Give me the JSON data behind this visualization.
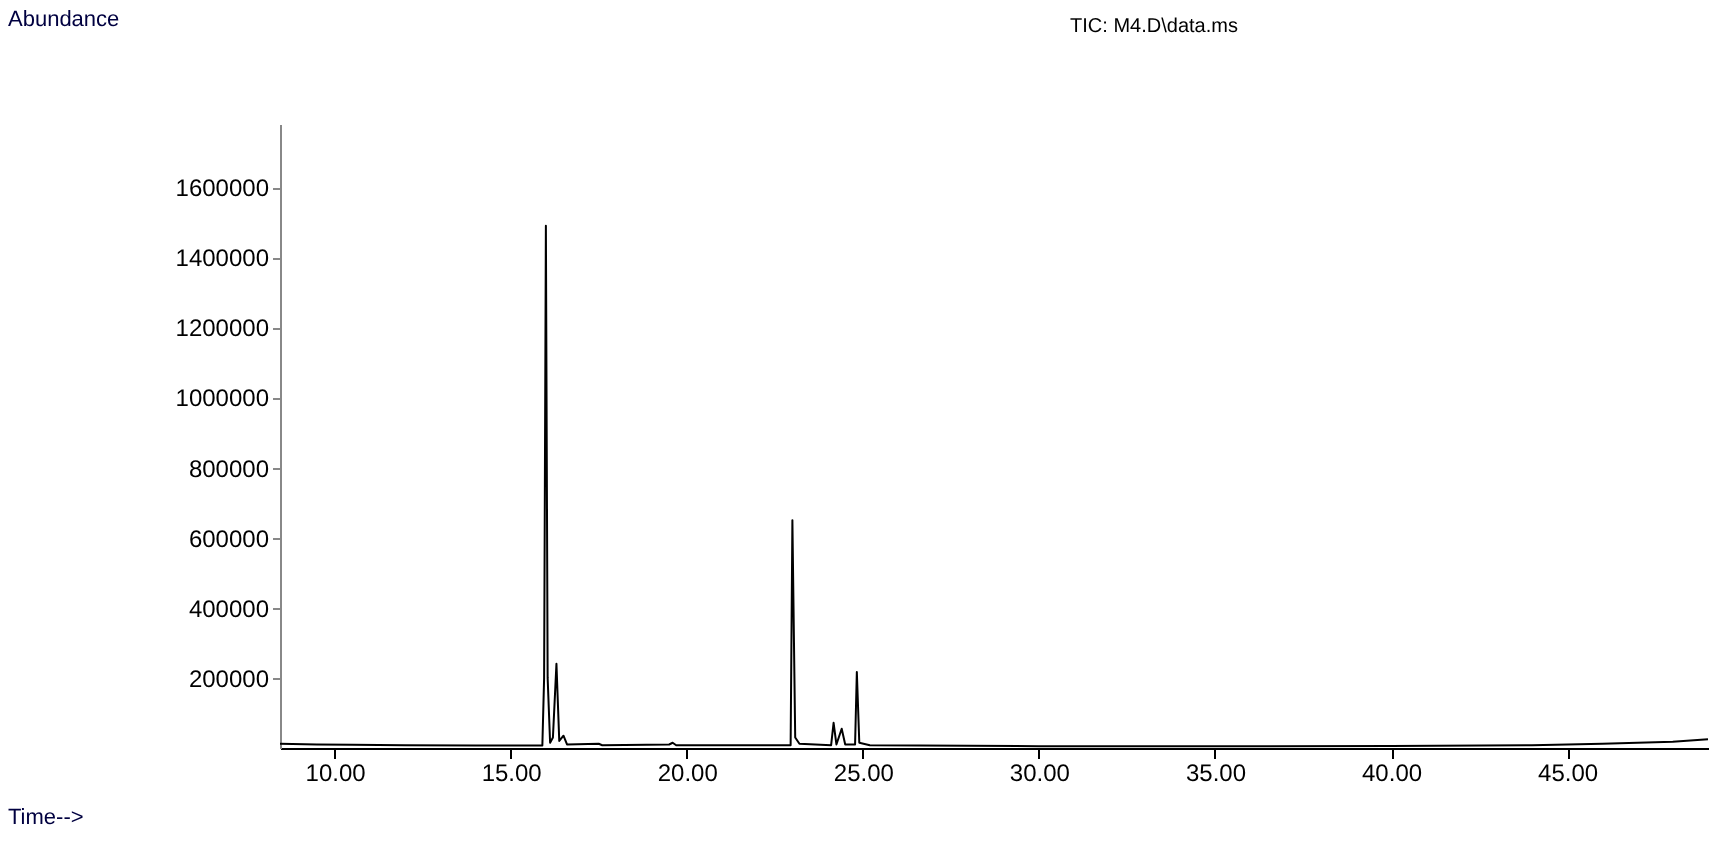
{
  "chart_data": {
    "type": "line",
    "title": "TIC: M4.D\\data.ms",
    "annotations": [
      "Abundance",
      "Time-->"
    ],
    "x": [
      8.45,
      9.5,
      10.5,
      12,
      14,
      15.9,
      15.95,
      16.0,
      16.05,
      16.12,
      16.2,
      16.3,
      16.38,
      16.5,
      16.6,
      17.5,
      17.6,
      19.5,
      19.6,
      19.7,
      22.95,
      23.0,
      23.08,
      23.2,
      24.1,
      24.17,
      24.25,
      24.4,
      24.5,
      24.78,
      24.83,
      24.9,
      25.2,
      30,
      35,
      40,
      44,
      46,
      48,
      49
    ],
    "series": [
      {
        "color": "#000000",
        "values": [
          12000,
          10000,
          9000,
          8000,
          7000,
          7000,
          200000,
          1490000,
          200000,
          15000,
          30000,
          240000,
          20000,
          35000,
          10000,
          12000,
          8000,
          10000,
          15000,
          8000,
          8000,
          650000,
          30000,
          12000,
          8000,
          72000,
          10000,
          55000,
          10000,
          10000,
          217000,
          15000,
          8000,
          5000,
          5000,
          6000,
          8000,
          12000,
          18000,
          25000
        ]
      }
    ],
    "xlim": [
      8.45,
      49
    ],
    "ylim": [
      0,
      1780000
    ],
    "xticks": [
      {
        "value": 10,
        "label": "10.00"
      },
      {
        "value": 15,
        "label": "15.00"
      },
      {
        "value": 20,
        "label": "20.00"
      },
      {
        "value": 25,
        "label": "25.00"
      },
      {
        "value": 30,
        "label": "30.00"
      },
      {
        "value": 35,
        "label": "35.00"
      },
      {
        "value": 40,
        "label": "40.00"
      },
      {
        "value": 45,
        "label": "45.00"
      }
    ],
    "yticks": [
      200000,
      400000,
      600000,
      800000,
      1000000,
      1200000,
      1400000,
      1600000
    ],
    "grid": false
  }
}
